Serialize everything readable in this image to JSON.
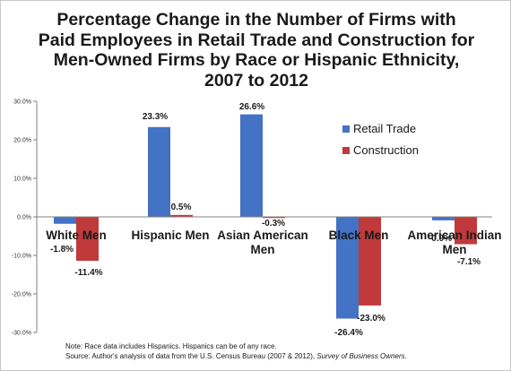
{
  "chart_data": {
    "type": "bar",
    "title": "Percentage Change in the Number of Firms with Paid Employees in Retail Trade and Construction for Men-Owned Firms by Race or Hispanic Ethnicity, 2007 to 2012",
    "categories": [
      "White Men",
      "Hispanic Men",
      "Asian American Men",
      "Black Men",
      "American Indian Men"
    ],
    "series": [
      {
        "name": "Retail Trade",
        "values": [
          -1.8,
          23.3,
          26.6,
          -26.4,
          -0.9
        ],
        "labels": [
          "-1.8%",
          "23.3%",
          "26.6%",
          "-26.4%",
          "-0.9%"
        ],
        "color": "#4472c4"
      },
      {
        "name": "Construction",
        "values": [
          -11.4,
          0.5,
          -0.3,
          -23.0,
          -7.1
        ],
        "labels": [
          "-11.4%",
          "0.5%",
          "-0.3%",
          "-23.0%",
          "-7.1%"
        ],
        "color": "#c0393b"
      }
    ],
    "ylim": [
      -30,
      30
    ],
    "yticks": [
      "30.0%",
      "20.0%",
      "10.0%",
      "0.0%",
      "-10.0%",
      "-20.0%",
      "-30.0%"
    ],
    "grid": false,
    "legend": "right"
  },
  "footnote": {
    "note": "Note: Race data includes Hispanics. Hispanics can be of any race.",
    "source_prefix": "Source: Author's analysis of data from the U.S. Census Bureau (2007 & 2012), ",
    "source_italic": "Survey of Business Owners",
    "source_suffix": "."
  }
}
